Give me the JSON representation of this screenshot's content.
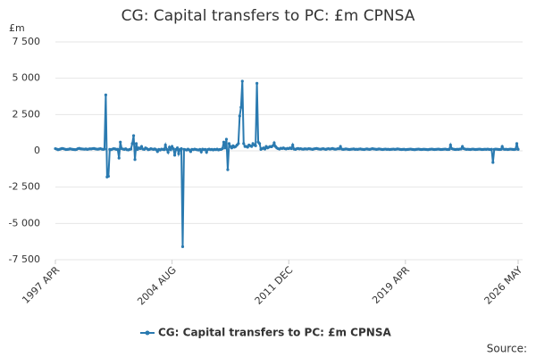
{
  "chart_data": {
    "type": "line",
    "title": "CG: Capital transfers to PC: £m CPNSA",
    "y_unit": "£m",
    "source": "Source:",
    "categories": [
      "1997 APR",
      null,
      null,
      null,
      null,
      null,
      null,
      null,
      null,
      null,
      null,
      null,
      null,
      null,
      null,
      null,
      null,
      null,
      null,
      null,
      null,
      null,
      null,
      null,
      null,
      null,
      null,
      null,
      null,
      null,
      null,
      null,
      null,
      null,
      null,
      null,
      null,
      null,
      null,
      null,
      null,
      null,
      null,
      null,
      null,
      null,
      null,
      null,
      null,
      null,
      null,
      null,
      null,
      null,
      null,
      null,
      null,
      null,
      null,
      null,
      null,
      null,
      null,
      null,
      null,
      null,
      null,
      null,
      null,
      null,
      null,
      null,
      null,
      null,
      null,
      null,
      null,
      null,
      null,
      null,
      null,
      null,
      null,
      null,
      null,
      null,
      null,
      null,
      "2004 AUG",
      null,
      null,
      null,
      null,
      null,
      null,
      null,
      null,
      null,
      null,
      null,
      null,
      null,
      null,
      null,
      null,
      null,
      null,
      null,
      null,
      null,
      null,
      null,
      null,
      null,
      null,
      null,
      null,
      null,
      null,
      null,
      null,
      null,
      null,
      null,
      null,
      null,
      null,
      null,
      null,
      null,
      null,
      null,
      null,
      null,
      null,
      null,
      null,
      null,
      null,
      null,
      null,
      null,
      null,
      null,
      null,
      null,
      null,
      null,
      null,
      null,
      null,
      null,
      null,
      null,
      null,
      null,
      null,
      null,
      null,
      null,
      null,
      null,
      null,
      null,
      null,
      null,
      null,
      null,
      null,
      null,
      null,
      null,
      null,
      null,
      null,
      null,
      "2011 DEC",
      null,
      null,
      null,
      null,
      null,
      null,
      null,
      null,
      null,
      null,
      null,
      null,
      null,
      null,
      null,
      null,
      null,
      null,
      null,
      null,
      null,
      null,
      null,
      null,
      null,
      null,
      null,
      null,
      null,
      null,
      null,
      null,
      null,
      null,
      null,
      null,
      null,
      null,
      null,
      null,
      null,
      null,
      null,
      null,
      null,
      null,
      null,
      null,
      null,
      null,
      null,
      null,
      null,
      null,
      null,
      null,
      null,
      null,
      null,
      null,
      null,
      null,
      null,
      null,
      null,
      null,
      null,
      null,
      null,
      null,
      null,
      null,
      null,
      null,
      null,
      null,
      null,
      null,
      null,
      null,
      null,
      null,
      null,
      null,
      null,
      null,
      null,
      "2019 APR",
      null,
      null,
      null,
      null,
      null,
      null,
      null,
      null,
      null,
      null,
      null,
      null,
      null,
      null,
      null,
      null,
      null,
      null,
      null,
      null,
      null,
      null,
      null,
      null,
      null,
      null,
      null,
      null,
      null,
      null,
      null,
      null,
      null,
      null,
      null,
      null,
      null,
      null,
      null,
      null,
      null,
      null,
      null,
      null,
      null,
      null,
      null,
      null,
      null,
      null,
      null,
      null,
      null,
      null,
      null,
      null,
      null,
      null,
      null,
      null,
      null,
      null,
      null,
      null,
      null,
      null,
      null,
      null,
      null,
      null,
      null,
      null,
      null,
      null,
      null,
      null,
      null,
      null,
      null,
      null,
      null,
      null,
      null,
      null,
      "2026 MAY"
    ],
    "series": [
      {
        "name": "CG: Capital transfers to PC: £m CPNSA",
        "color": "#2a7ab0",
        "values": [
          150,
          120,
          80,
          100,
          130,
          160,
          150,
          120,
          90,
          100,
          110,
          140,
          120,
          100,
          90,
          80,
          100,
          150,
          170,
          140,
          130,
          120,
          110,
          130,
          100,
          120,
          140,
          130,
          150,
          160,
          140,
          120,
          110,
          130,
          150,
          120,
          100,
          120,
          3850,
          -1800,
          -1750,
          100,
          80,
          120,
          150,
          130,
          100,
          110,
          -500,
          600,
          150,
          120,
          100,
          140,
          80,
          60,
          100,
          120,
          500,
          1050,
          -600,
          500,
          100,
          200,
          150,
          300,
          120,
          100,
          200,
          150,
          80,
          100,
          150,
          120,
          100,
          130,
          80,
          -50,
          100,
          50,
          120,
          100,
          80,
          400,
          100,
          -100,
          250,
          80,
          300,
          150,
          -300,
          100,
          200,
          -200,
          100,
          150,
          -6600,
          100,
          80,
          50,
          120,
          60,
          -50,
          100,
          80,
          120,
          90,
          70,
          50,
          100,
          -80,
          120,
          80,
          100,
          -100,
          90,
          120,
          80,
          100,
          60,
          100,
          80,
          120,
          60,
          90,
          100,
          150,
          600,
          200,
          800,
          -1300,
          500,
          300,
          200,
          350,
          250,
          300,
          400,
          500,
          2400,
          3000,
          4800,
          500,
          300,
          300,
          250,
          400,
          350,
          300,
          500,
          400,
          350,
          4650,
          600,
          500,
          100,
          150,
          200,
          120,
          300,
          200,
          250,
          300,
          280,
          350,
          550,
          300,
          200,
          150,
          120,
          180,
          160,
          200,
          150,
          130,
          170,
          150,
          200,
          150,
          400,
          120,
          100,
          140,
          160,
          130,
          150,
          120,
          110,
          140,
          130,
          120,
          150,
          140,
          120,
          100,
          130,
          150,
          160,
          140,
          120,
          110,
          130,
          150,
          120,
          100,
          130,
          150,
          120,
          140,
          160,
          130,
          110,
          120,
          150,
          140,
          300,
          120,
          100,
          110,
          130,
          120,
          100,
          90,
          110,
          120,
          130,
          100,
          110,
          100,
          120,
          130,
          110,
          100,
          90,
          120,
          130,
          110,
          100,
          120,
          150,
          130,
          120,
          100,
          110,
          130,
          120,
          100,
          90,
          110,
          120,
          100,
          110,
          90,
          100,
          110,
          120,
          100,
          110,
          130,
          120,
          100,
          90,
          100,
          110,
          80,
          90,
          100,
          110,
          120,
          100,
          90,
          80,
          100,
          110,
          120,
          100,
          90,
          100,
          110,
          100,
          90,
          80,
          100,
          110,
          120,
          100,
          90,
          100,
          110,
          120,
          100,
          90,
          100,
          110,
          120,
          100,
          90,
          100,
          400,
          150,
          120,
          100,
          90,
          110,
          100,
          120,
          130,
          300,
          150,
          120,
          100,
          110,
          100,
          90,
          110,
          120,
          100,
          90,
          100,
          110,
          120,
          100,
          90,
          100,
          110,
          100,
          120,
          100,
          90,
          110,
          -800,
          100,
          120,
          110,
          100,
          90,
          100,
          300,
          120,
          100,
          110,
          90,
          100,
          120,
          110,
          100,
          90,
          110,
          500,
          100
        ]
      }
    ],
    "ylim": [
      -7500,
      7500
    ],
    "yticks": [
      {
        "value": -7500,
        "label": "-7 500"
      },
      {
        "value": -5000,
        "label": "-5 000"
      },
      {
        "value": -2500,
        "label": "-2 500"
      },
      0,
      {
        "value": 2500,
        "label": "2 500"
      },
      {
        "value": 5000,
        "label": "5 000"
      },
      {
        "value": 7500,
        "label": "7 500"
      }
    ],
    "grid": true
  }
}
